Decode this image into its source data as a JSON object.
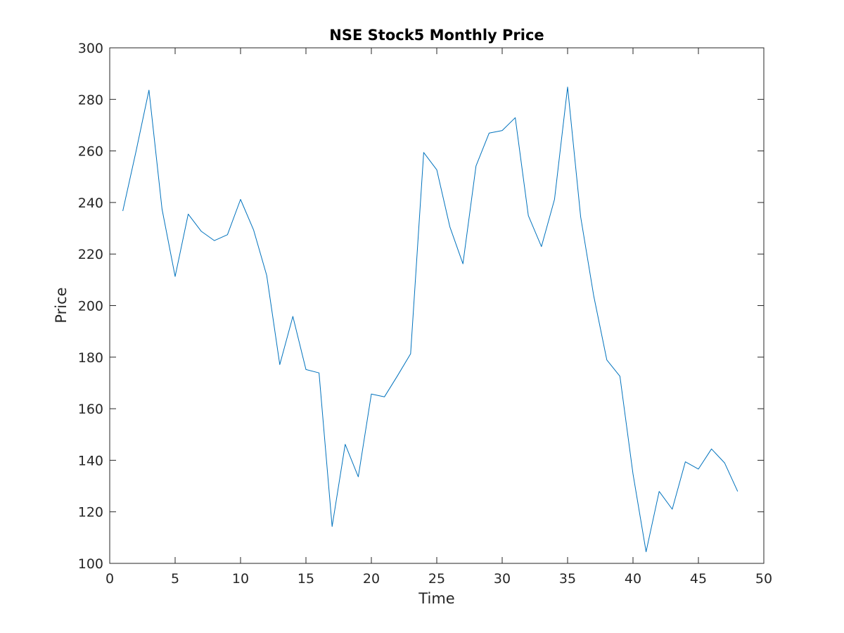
{
  "chart_data": {
    "type": "line",
    "title": "NSE Stock5 Monthly Price",
    "xlabel": "Time",
    "ylabel": "Price",
    "xlim": [
      0,
      50
    ],
    "ylim": [
      100,
      300
    ],
    "xticks": [
      0,
      5,
      10,
      15,
      20,
      25,
      30,
      35,
      40,
      45,
      50
    ],
    "yticks": [
      100,
      120,
      140,
      160,
      180,
      200,
      220,
      240,
      260,
      280,
      300
    ],
    "grid": false,
    "line_color": "#0072BD",
    "series": [
      {
        "x": [
          1,
          2,
          3,
          4,
          5,
          6,
          7,
          8,
          9,
          10,
          11,
          12,
          13,
          14,
          15,
          16,
          17,
          18,
          19,
          20,
          21,
          22,
          23,
          24,
          25,
          26,
          27,
          28,
          29,
          30,
          31,
          32,
          33,
          34,
          35,
          36,
          37,
          38,
          39,
          40,
          41,
          42,
          43,
          44,
          45,
          46,
          47,
          48
        ],
        "values": [
          236.7,
          259.6,
          283.6,
          237.4,
          211.3,
          235.5,
          228.8,
          225.2,
          227.5,
          241.2,
          229.3,
          211.7,
          177.1,
          195.8,
          175.2,
          173.9,
          114.3,
          146.2,
          133.6,
          165.7,
          164.6,
          172.8,
          181.3,
          259.4,
          252.7,
          230.6,
          216.2,
          254.2,
          266.9,
          267.9,
          272.9,
          234.9,
          222.9,
          241.2,
          284.8,
          234.4,
          203.7,
          178.9,
          172.6,
          134.7,
          104.5,
          127.9,
          121.0,
          139.4,
          136.6,
          144.4,
          139.0,
          127.9
        ]
      }
    ]
  }
}
